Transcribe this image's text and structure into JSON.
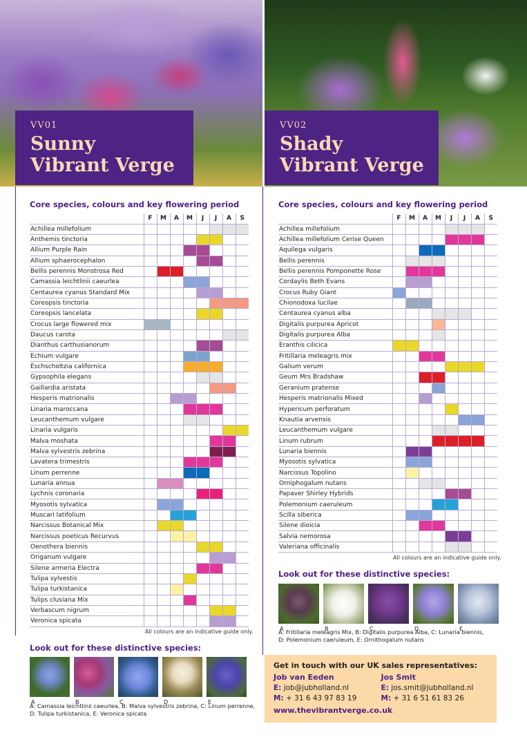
{
  "colors": {
    "brand_purple": "#4d2384",
    "title_text": "#f7d9b5",
    "contact_bg": "#fbd9a8"
  },
  "months": [
    "F",
    "M",
    "A",
    "M",
    "J",
    "J",
    "A",
    "S"
  ],
  "legend_colors": {
    "W": "#e5e5e5",
    "Y": "#ead829",
    "P": "#a64b94",
    "R": "#dc1f28",
    "L": "#b79ed2",
    "B": "#8aa5d9",
    "S": "#f49a83",
    "G": "#a6b7c3",
    "D": "#0b6bb8",
    "O": "#f6ad2c",
    "K": "#e1379b",
    "Q": "#d88fbd",
    "M": "#7f1d4e",
    "C": "#e8227a",
    "A": "#25a3d9",
    "V": "#fbf2a6",
    "X": "#7a3e97",
    "F": "#fbb796",
    "T": "#9aaabf",
    "U": "#7da3cb",
    "N": "#ffffff"
  },
  "sunny": {
    "code": "VV01",
    "title_line1": "Sunny",
    "title_line2": "Vibrant Verge",
    "section_title": "Core species, colours and key flowering period",
    "species": [
      {
        "name": "Achillea millefolium",
        "cells": "NNNNNWWW"
      },
      {
        "name": "Anthemis tinctoria",
        "cells": "NNNNYYNN"
      },
      {
        "name": "Allium Purple Rain",
        "cells": "NNNPPNNN"
      },
      {
        "name": "Allium sphaerocephalon",
        "cells": "NNNNPPNN"
      },
      {
        "name": "Bellis perennis Monstrosa Red",
        "cells": "NRRNNNNN"
      },
      {
        "name": "Camassia leichtlinii caeurlea",
        "cells": "NNNBBNNN"
      },
      {
        "name": "Centaurea cyanus Standard Mix",
        "cells": "NNNNLLNN"
      },
      {
        "name": "Coreopsis tinctoria",
        "cells": "NNNNNSSS"
      },
      {
        "name": "Coreopsis lancelata",
        "cells": "NNNNYYNN"
      },
      {
        "name": "Crocus large flowered mix",
        "cells": "GGNNNNNN"
      },
      {
        "name": "Daucus carota",
        "cells": "NNNNNNWW"
      },
      {
        "name": "Dianthus carthusianorum",
        "cells": "NNNNPPNN"
      },
      {
        "name": "Echium vulgare",
        "cells": "NNNUUNNN"
      },
      {
        "name": "Eschscholtzia californica",
        "cells": "NNNOOONN"
      },
      {
        "name": "Gypsophila elegans",
        "cells": "NNNNWWNN"
      },
      {
        "name": "Gaillardia aristata",
        "cells": "NNNNNSSN"
      },
      {
        "name": "Hesperis matrionalis",
        "cells": "NNLLNNNN"
      },
      {
        "name": "Linaria maroccana",
        "cells": "NNNKKKNN"
      },
      {
        "name": "Leucanthemum vulgare",
        "cells": "NNNWWNNN"
      },
      {
        "name": "Linaria vulgaris",
        "cells": "NNNNNNYY"
      },
      {
        "name": "Malva moshata",
        "cells": "NNNNNKKN"
      },
      {
        "name": "Malva sylvestris zebrina",
        "cells": "NNNNNMMN"
      },
      {
        "name": "Lavatera trimestris",
        "cells": "NNNKKKNN"
      },
      {
        "name": "Linum perrenne",
        "cells": "NNNDDNNN"
      },
      {
        "name": "Lunaria annua",
        "cells": "NQQNNNNN"
      },
      {
        "name": "Lychnis coronaria",
        "cells": "NNNNCCNN"
      },
      {
        "name": "Myosotis sylvatica",
        "cells": "NBBNNNNN"
      },
      {
        "name": "Muscari latifolium",
        "cells": "NNAANNNN"
      },
      {
        "name": "Narcissus Botanical Mix",
        "cells": "NYYNNNNN"
      },
      {
        "name": "Narcissus poeticus Recurvus",
        "cells": "NNVVNNNN"
      },
      {
        "name": "Oenothera biennis",
        "cells": "NNNNYYNN"
      },
      {
        "name": "Origanum vulgare",
        "cells": "NNNNNLLN"
      },
      {
        "name": "Silene armeria Electra",
        "cells": "NNNNKKNN"
      },
      {
        "name": "Tulipa sylvestis",
        "cells": "NNNYNNNN"
      },
      {
        "name": "Tulipa turkistanica",
        "cells": "NNVNNNNN"
      },
      {
        "name": "Tulips clusiana Mix",
        "cells": "NNNKNNNN"
      },
      {
        "name": "Verbascum nigrum",
        "cells": "NNNNNYYN"
      },
      {
        "name": "Veronica spicata",
        "cells": "NNNNNLLN"
      }
    ],
    "note": "All colours are an indicative guide only.",
    "lookout_title": "Look out for these distinctive species:",
    "thumbs": [
      "A",
      "B",
      "C",
      "D",
      "E"
    ],
    "caption_line1": "A: Camassia leichtlinii caeurlea, B: Malva sylvestris zebrina, C: Linum perrenne,",
    "caption_line2": "D: Tulipa turkistanica, E: Veronica spicata"
  },
  "shady": {
    "code": "VV02",
    "title_line1": "Shady",
    "title_line2": "Vibrant Verge",
    "section_title": "Core species, colours and key flowering period",
    "species": [
      {
        "name": "Achillea millefolium",
        "cells": "NNNNWWWN"
      },
      {
        "name": "Achillea millefolium Cerise Queen",
        "cells": "NNNNKKKN"
      },
      {
        "name": "Aquilega vulgaris",
        "cells": "NNDDNNNN"
      },
      {
        "name": "Bellis perennis",
        "cells": "NWWWNNNN"
      },
      {
        "name": "Bellis perennis Pomponette Rose",
        "cells": "NKKKNNNN"
      },
      {
        "name": "Cordaylis Beth Evans",
        "cells": "NLLNNNNN"
      },
      {
        "name": "Crocus Ruby Giant",
        "cells": "BNNNNNNN"
      },
      {
        "name": "Chionodoxa lucilae",
        "cells": "NTTNNNNN"
      },
      {
        "name": "Centaurea cyanus alba",
        "cells": "NNNWWWNN"
      },
      {
        "name": "Digitalis purpurea Apricot",
        "cells": "NNNFNNNN"
      },
      {
        "name": "Digitalis purpurea Alba",
        "cells": "NNNWNNNN"
      },
      {
        "name": "Eranthis cilicica",
        "cells": "YYNNNNNN"
      },
      {
        "name": "Fritillaria meleagris mix",
        "cells": "NNKKNNNN"
      },
      {
        "name": "Galium verum",
        "cells": "NNNNYYYN"
      },
      {
        "name": "Geum Mrs Bradshaw",
        "cells": "NNRRNNNN"
      },
      {
        "name": "Geranium pratense",
        "cells": "NNNBNNNN"
      },
      {
        "name": "Hesperis matrionalis Mixed",
        "cells": "NNLNNNNN"
      },
      {
        "name": "Hypericum perforatum",
        "cells": "NNNNYNNN"
      },
      {
        "name": "Knautia arvensis",
        "cells": "NNNNNBBN"
      },
      {
        "name": "Leucanthemum vulgare",
        "cells": "NNNWWNNN"
      },
      {
        "name": "Linum rubrum",
        "cells": "NNNRRRRN"
      },
      {
        "name": "Lunaria biennis",
        "cells": "NXXNNNNN"
      },
      {
        "name": "Myosotis sylvatica",
        "cells": "NBBNNNNN"
      },
      {
        "name": "Narcissus Topolino",
        "cells": "NVNNNNNN"
      },
      {
        "name": "Orniphogalum nutans",
        "cells": "NNWWNNNN"
      },
      {
        "name": "Papaver Shirley Hybrids",
        "cells": "NNNNPPNN"
      },
      {
        "name": "Polemonium caeruleum",
        "cells": "NNNAANNN"
      },
      {
        "name": "Scilla siberica",
        "cells": "NBBNNNNN"
      },
      {
        "name": "Silene dioicia",
        "cells": "NNKKNNNN"
      },
      {
        "name": "Salvia nemorosa",
        "cells": "NNNNXXNN"
      },
      {
        "name": "Valeriana officinalis",
        "cells": "NNNNWWNN"
      }
    ],
    "note": "All colours are an indicative guide only.",
    "lookout_title": "Look out for these distinctive species:",
    "thumbs": [
      "A",
      "B",
      "C",
      "D",
      "E"
    ],
    "caption_line1": "A: Fritillaria meleagris Mix, B: Digitalis purpurea Alba, C: Lunaria biennis,",
    "caption_line2": "D: Polemonium caeruleum, E: Ornithogalum nutans"
  },
  "contact": {
    "heading": "Get in touch with our UK sales representatives:",
    "rep1_name": "Job van Eeden",
    "rep1_email_label": "E:",
    "rep1_email": "job@jubholland.nl",
    "rep1_phone_label": "M:",
    "rep1_phone": "+ 31 6 43 97 83 19",
    "rep2_name": "Jos Smit",
    "rep2_email_label": "E:",
    "rep2_email": "jos.smit@jubholland.nl",
    "rep2_phone_label": "M:",
    "rep2_phone": "+ 31 6 51 61 83 26",
    "website": "www.thevibrantverge.co.uk"
  }
}
